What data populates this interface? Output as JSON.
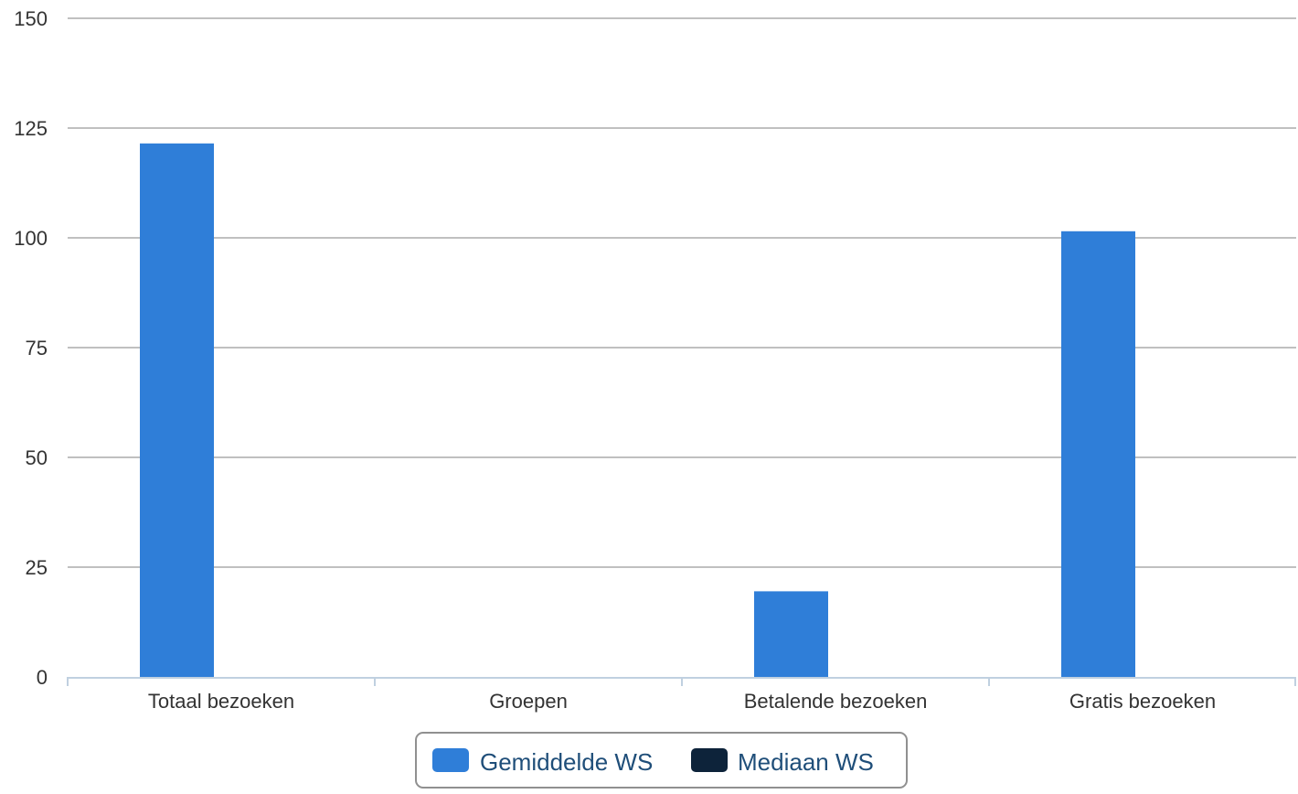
{
  "chart_data": {
    "type": "bar",
    "categories": [
      "Totaal bezoeken",
      "Groepen",
      "Betalende bezoeken",
      "Gratis bezoeken"
    ],
    "series": [
      {
        "name": "Gemiddelde WS",
        "values": [
          121.5,
          0,
          19.5,
          101.5
        ],
        "color": "#2f7ed8"
      },
      {
        "name": "Mediaan WS",
        "values": [
          0,
          0,
          0,
          0
        ],
        "color": "#0d233a"
      }
    ],
    "ylim": [
      0,
      150
    ],
    "yticks": [
      "0",
      "25",
      "50",
      "75",
      "100",
      "125",
      "150"
    ],
    "grid": true,
    "legend_position": "bottom-center"
  }
}
